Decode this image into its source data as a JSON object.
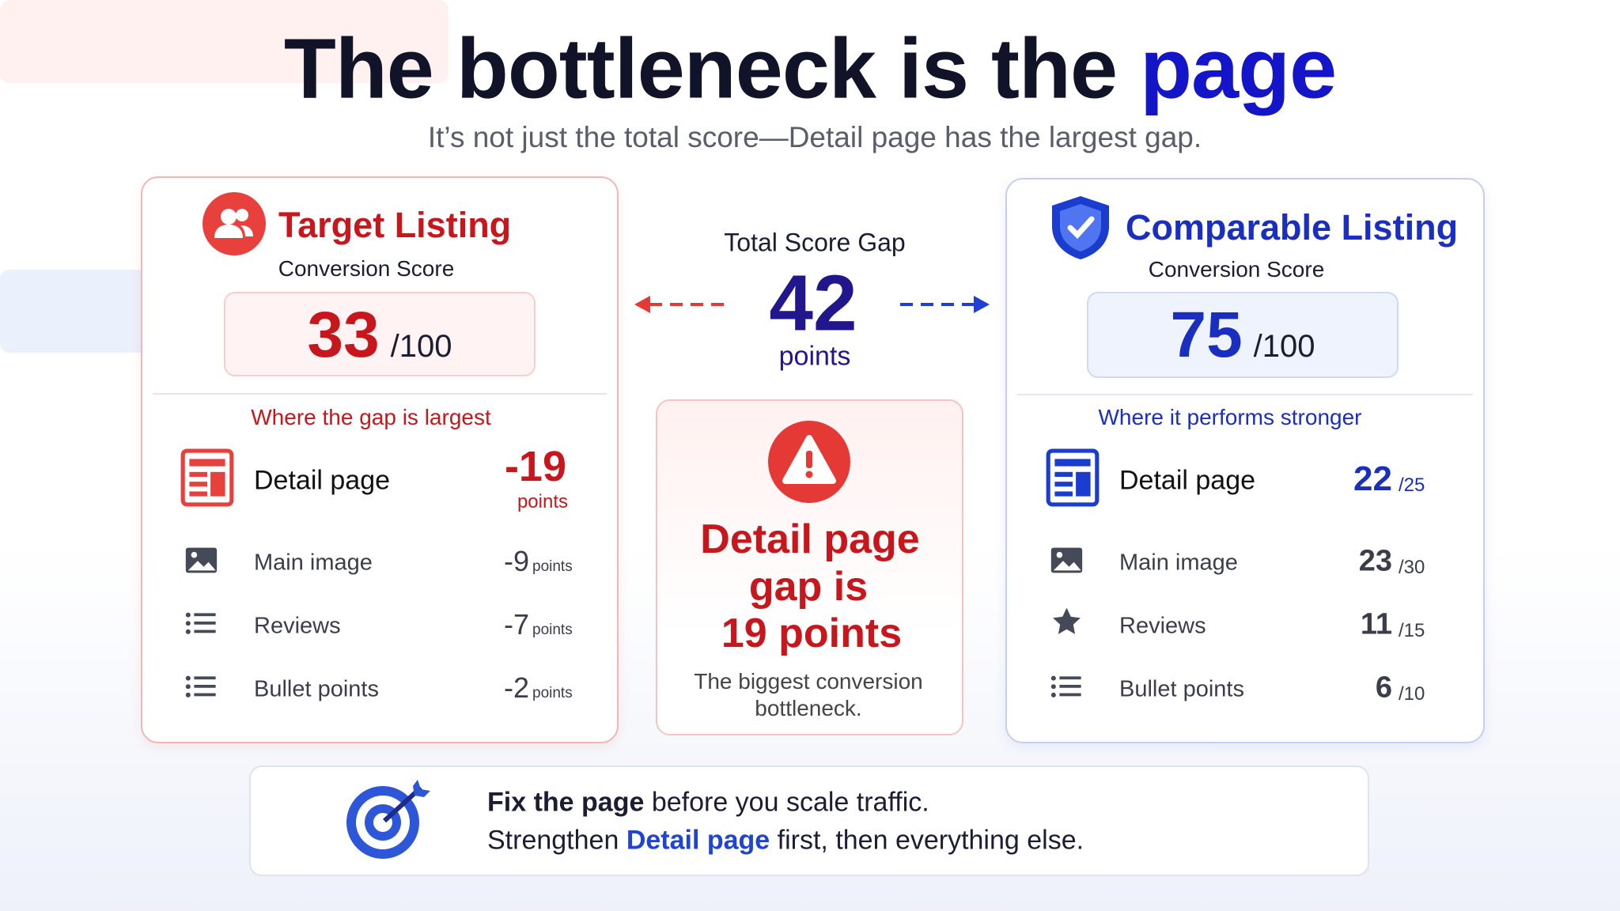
{
  "header": {
    "title": "The bottleneck is the",
    "title_highlight": "page",
    "subtitle": "It’s not just the total score—Detail page has the largest gap."
  },
  "target": {
    "title": "Target Listing",
    "subtitle": "Conversion Score",
    "score": 33,
    "score_max": "/100",
    "section_label": "Where the gap is largest",
    "rows": [
      {
        "label": "Detail page",
        "value": -19,
        "unit": "points"
      },
      {
        "label": "Main image",
        "value": -9,
        "unit": "points"
      },
      {
        "label": "Reviews",
        "value": -7,
        "unit": "points"
      },
      {
        "label": "Bullet points",
        "value": -2,
        "unit": "points"
      }
    ]
  },
  "gap": {
    "label": "Total Score Gap",
    "value": 42,
    "unit": "points"
  },
  "callout": {
    "title_lines": [
      "Detail page",
      "gap is",
      "19 points"
    ],
    "text": "The biggest conversion bottleneck."
  },
  "comparable": {
    "title": "Comparable Listing",
    "subtitle": "Conversion Score",
    "score": 75,
    "score_max": "/100",
    "section_label": "Where it performs stronger",
    "rows": [
      {
        "label": "Detail page",
        "value": 22,
        "max": "/25"
      },
      {
        "label": "Main image",
        "value": 23,
        "max": "/30"
      },
      {
        "label": "Reviews",
        "value": 11,
        "max": "/15"
      },
      {
        "label": "Bullet points",
        "value": 6,
        "max": "/10"
      }
    ]
  },
  "footer": {
    "line1_bold": "Fix the page",
    "line1_rest": "before you scale traffic.",
    "line2_start": "Strengthen",
    "line2_highlight": "Detail page",
    "line2_end": "first, then everything else."
  }
}
